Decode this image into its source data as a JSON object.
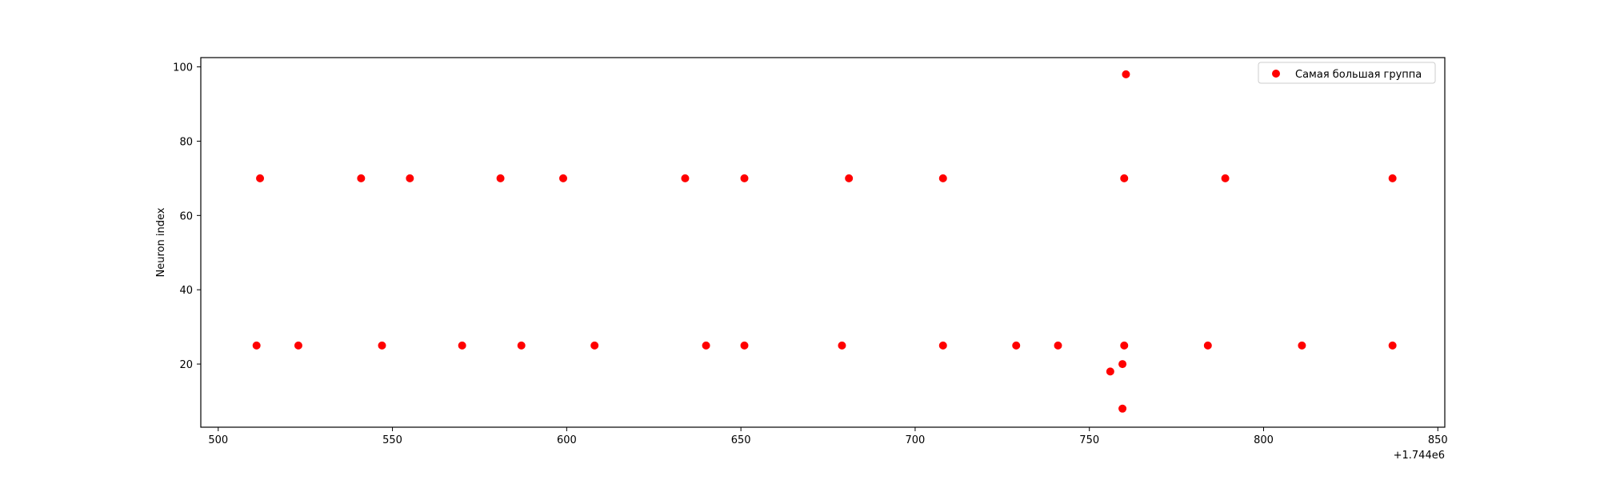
{
  "chart_data": {
    "type": "scatter",
    "xlabel": "",
    "ylabel": "Neuron index",
    "x_offset_label": "+1.744e6",
    "xlim": [
      495,
      852
    ],
    "ylim": [
      3,
      102.5
    ],
    "x_ticks": [
      500,
      550,
      600,
      650,
      700,
      750,
      800,
      850
    ],
    "y_ticks": [
      20,
      40,
      60,
      80,
      100
    ],
    "grid": false,
    "legend_position": "top-right",
    "series": [
      {
        "name": "Самая большая группа",
        "color": "#ff0000",
        "x": [
          511,
          512,
          523,
          541,
          547,
          555,
          570,
          581,
          587,
          599,
          608,
          634,
          640,
          651,
          651,
          679,
          681,
          708,
          708,
          729,
          741,
          756,
          759.5,
          759.5,
          760,
          760,
          760.5,
          784,
          789,
          811,
          837,
          837
        ],
        "y": [
          25,
          70,
          25,
          70,
          25,
          70,
          25,
          70,
          25,
          70,
          25,
          70,
          25,
          70,
          25,
          25,
          70,
          70,
          25,
          25,
          25,
          18,
          20,
          8,
          25,
          70,
          98,
          25,
          70,
          25,
          70,
          25
        ]
      }
    ]
  }
}
